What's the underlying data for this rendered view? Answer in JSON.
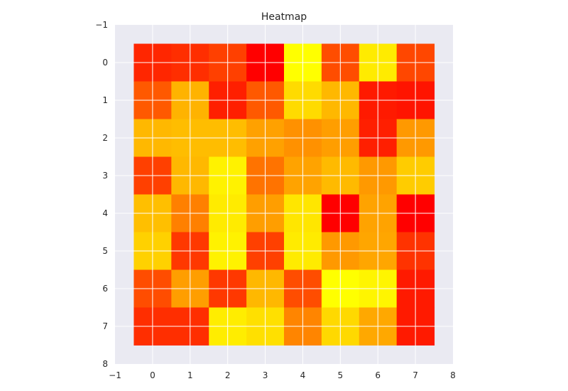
{
  "chart_data": {
    "type": "heatmap",
    "title": "Heatmap",
    "xlabel": "",
    "ylabel": "",
    "xlim": [
      -1,
      8
    ],
    "ylim": [
      8,
      -1
    ],
    "xticks": [
      "−1",
      "0",
      "1",
      "2",
      "3",
      "4",
      "5",
      "6",
      "7",
      "8"
    ],
    "yticks": [
      "−1",
      "0",
      "1",
      "2",
      "3",
      "4",
      "5",
      "6",
      "7",
      "8"
    ],
    "grid": true,
    "colormap": "autumn",
    "background_color": "#eaeaf2",
    "grid_color": "#ffffff",
    "colormap_low": "#ff0000",
    "colormap_high": "#ffff00",
    "values": [
      [
        0.15,
        0.18,
        0.25,
        0.0,
        1.0,
        0.3,
        0.92,
        0.28
      ],
      [
        0.35,
        0.7,
        0.12,
        0.35,
        0.86,
        0.72,
        0.1,
        0.08
      ],
      [
        0.72,
        0.74,
        0.74,
        0.63,
        0.57,
        0.62,
        0.12,
        0.6
      ],
      [
        0.25,
        0.72,
        0.95,
        0.45,
        0.64,
        0.73,
        0.6,
        0.8
      ],
      [
        0.75,
        0.5,
        0.92,
        0.62,
        0.9,
        0.0,
        0.64,
        0.0
      ],
      [
        0.82,
        0.22,
        0.95,
        0.25,
        0.92,
        0.6,
        0.65,
        0.2
      ],
      [
        0.3,
        0.62,
        0.22,
        0.72,
        0.3,
        1.0,
        0.96,
        0.1
      ],
      [
        0.18,
        0.18,
        0.93,
        0.88,
        0.52,
        0.85,
        0.66,
        0.1
      ]
    ]
  }
}
